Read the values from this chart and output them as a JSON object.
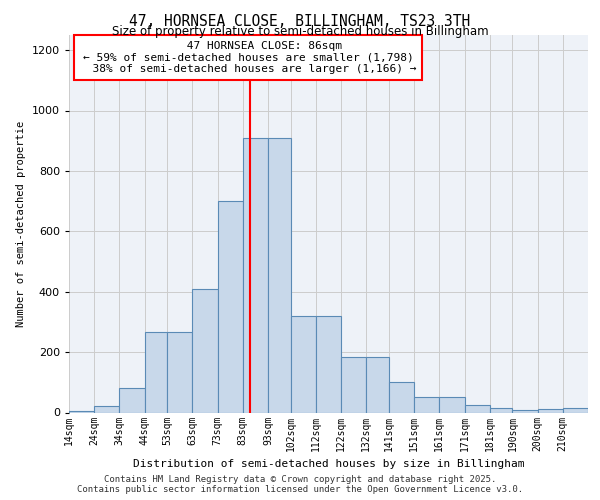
{
  "title1": "47, HORNSEA CLOSE, BILLINGHAM, TS23 3TH",
  "title2": "Size of property relative to semi-detached houses in Billingham",
  "xlabel": "Distribution of semi-detached houses by size in Billingham",
  "ylabel": "Number of semi-detached propertie",
  "categories": [
    "14sqm",
    "24sqm",
    "34sqm",
    "44sqm",
    "53sqm",
    "63sqm",
    "73sqm",
    "83sqm",
    "93sqm",
    "102sqm",
    "112sqm",
    "122sqm",
    "132sqm",
    "141sqm",
    "151sqm",
    "161sqm",
    "171sqm",
    "181sqm",
    "190sqm",
    "200sqm",
    "210sqm"
  ],
  "values": [
    5,
    20,
    80,
    265,
    265,
    410,
    700,
    910,
    910,
    320,
    320,
    185,
    185,
    100,
    50,
    50,
    25,
    15,
    8,
    10,
    15
  ],
  "bar_color": "#c8d8ea",
  "bar_edge_color": "#5a8ab5",
  "property_size": 86,
  "bin_edges": [
    14,
    24,
    34,
    44,
    53,
    63,
    73,
    83,
    93,
    102,
    112,
    122,
    132,
    141,
    151,
    161,
    171,
    181,
    190,
    200,
    210,
    220
  ],
  "pct_smaller": 59,
  "n_smaller": 1798,
  "pct_larger": 38,
  "n_larger": 1166,
  "property_label": "47 HORNSEA CLOSE: 86sqm",
  "grid_color": "#cccccc",
  "background_color": "#eef2f8",
  "ylim": [
    0,
    1250
  ],
  "yticks": [
    0,
    200,
    400,
    600,
    800,
    1000,
    1200
  ],
  "footer1": "Contains HM Land Registry data © Crown copyright and database right 2025.",
  "footer2": "Contains public sector information licensed under the Open Government Licence v3.0."
}
